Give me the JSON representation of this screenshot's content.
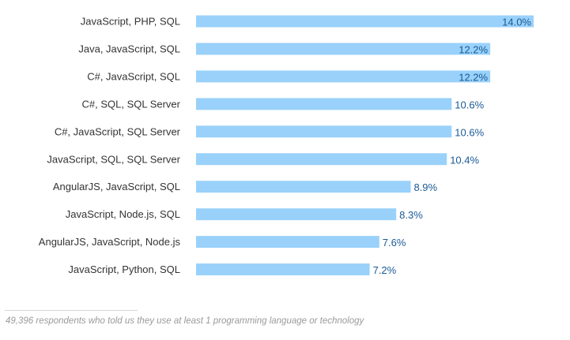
{
  "chart_data": {
    "type": "bar",
    "orientation": "horizontal",
    "categories": [
      "JavaScript, PHP, SQL",
      "Java, JavaScript, SQL",
      "C#, JavaScript, SQL",
      "C#, SQL, SQL Server",
      "C#, JavaScript, SQL Server",
      "JavaScript, SQL, SQL Server",
      "AngularJS, JavaScript, SQL",
      "JavaScript, Node.js, SQL",
      "AngularJS, JavaScript, Node.js",
      "JavaScript, Python, SQL"
    ],
    "values": [
      14.0,
      12.2,
      12.2,
      10.6,
      10.6,
      10.4,
      8.9,
      8.3,
      7.6,
      7.2
    ],
    "value_labels": [
      "14.0%",
      "12.2%",
      "12.2%",
      "10.6%",
      "10.6%",
      "10.4%",
      "8.9%",
      "8.3%",
      "7.6%",
      "7.2%"
    ],
    "unit": "%",
    "xlim": [
      0,
      14.0
    ],
    "grid": false,
    "colors": {
      "bar": "#99d1fa",
      "value_text": "#1a5a96",
      "category_text": "#333333"
    }
  },
  "footnote": "49,396 respondents who told us they use at least 1 programming language or technology"
}
